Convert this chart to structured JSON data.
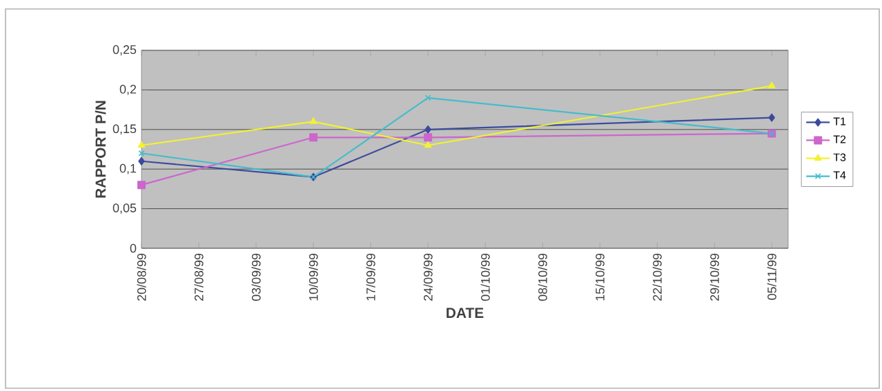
{
  "chart_data": {
    "type": "line",
    "xlabel": "DATE",
    "ylabel": "RAPPORT P/N",
    "x": [
      "1999-08-20",
      "1999-09-10",
      "1999-09-24",
      "1999-11-05"
    ],
    "series": [
      {
        "name": "T1",
        "color": "#3b4b9c",
        "marker": "diamond",
        "values": [
          0.11,
          0.09,
          0.15,
          0.165
        ]
      },
      {
        "name": "T2",
        "color": "#cc66cc",
        "marker": "square",
        "values": [
          0.08,
          0.14,
          0.14,
          0.145
        ]
      },
      {
        "name": "T3",
        "color": "#f2f230",
        "marker": "triangle",
        "values": [
          0.13,
          0.16,
          0.13,
          0.205
        ]
      },
      {
        "name": "T4",
        "color": "#44bccc",
        "marker": "cross",
        "values": [
          0.12,
          0.09,
          0.19,
          0.145
        ]
      }
    ],
    "xlim": [
      "1999-08-20",
      "1999-11-07"
    ],
    "xticks": [
      {
        "value": "1999-08-20",
        "label": "20/08/99"
      },
      {
        "value": "1999-08-27",
        "label": "27/08/99"
      },
      {
        "value": "1999-09-03",
        "label": "03/09/99"
      },
      {
        "value": "1999-09-10",
        "label": "10/09/99"
      },
      {
        "value": "1999-09-17",
        "label": "17/09/99"
      },
      {
        "value": "1999-09-24",
        "label": "24/09/99"
      },
      {
        "value": "1999-10-01",
        "label": "01/10/99"
      },
      {
        "value": "1999-10-08",
        "label": "08/10/99"
      },
      {
        "value": "1999-10-15",
        "label": "15/10/99"
      },
      {
        "value": "1999-10-22",
        "label": "22/10/99"
      },
      {
        "value": "1999-10-29",
        "label": "29/10/99"
      },
      {
        "value": "1999-11-05",
        "label": "05/11/99"
      }
    ],
    "ylim": [
      0,
      0.25
    ],
    "yticks": [
      0,
      {
        "value": 0.05,
        "label": "0,05"
      },
      {
        "value": 0.1,
        "label": "0,1"
      },
      {
        "value": 0.15,
        "label": "0,15"
      },
      {
        "value": 0.2,
        "label": "0,2"
      },
      {
        "value": 0.25,
        "label": "0,25"
      }
    ],
    "grid": "y",
    "legend": "right",
    "line_style": "solid"
  }
}
